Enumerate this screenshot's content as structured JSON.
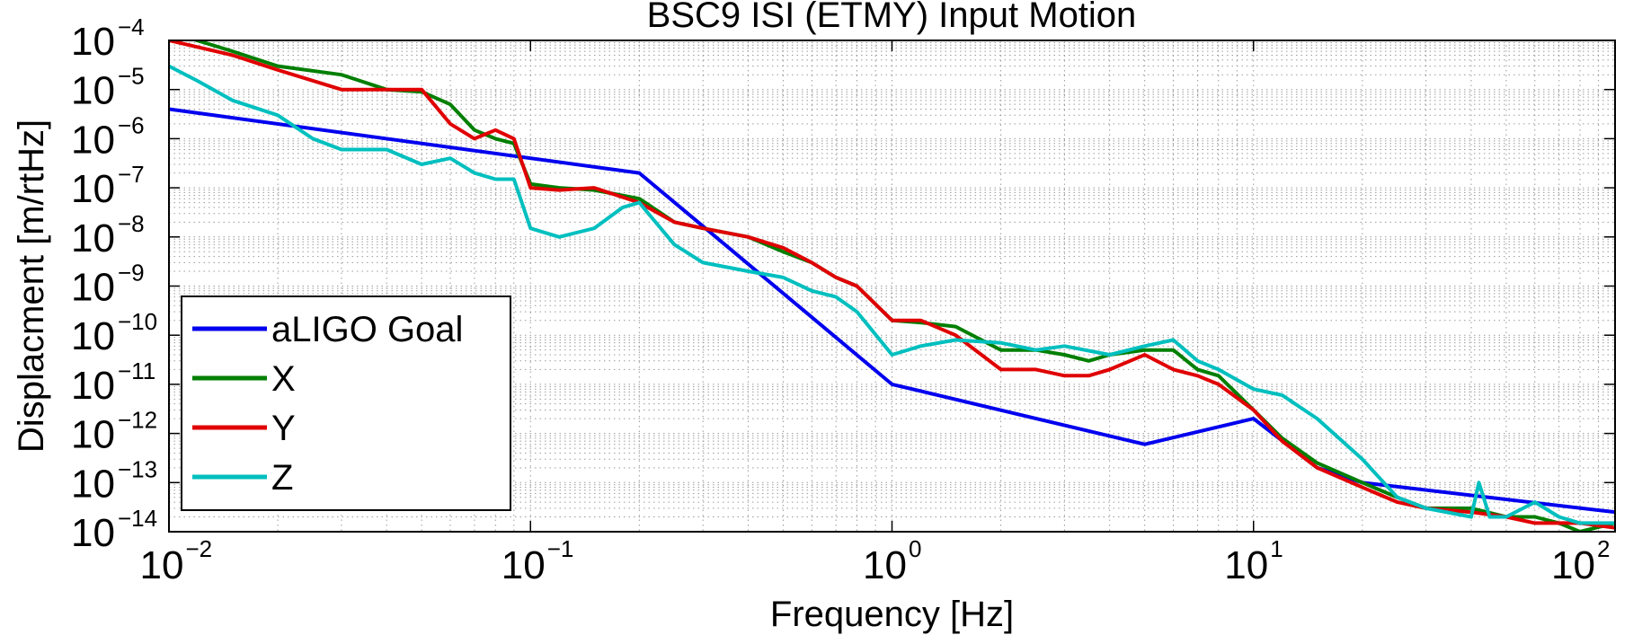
{
  "chart_data": {
    "type": "line",
    "title": "BSC9 ISI (ETMY) Input Motion",
    "xlabel": "Frequency [Hz]",
    "ylabel": "Displacment [m/rtHz]",
    "x_scale": "log",
    "y_scale": "log",
    "xlim": [
      0.01,
      100
    ],
    "ylim": [
      1e-14,
      0.0001
    ],
    "grid": true,
    "legend_position": "bottom-left",
    "x_ticks": [
      {
        "base": "10",
        "exp": "−2",
        "value": 0.01
      },
      {
        "base": "10",
        "exp": "−1",
        "value": 0.1
      },
      {
        "base": "10",
        "exp": "0",
        "value": 1
      },
      {
        "base": "10",
        "exp": "1",
        "value": 10
      },
      {
        "base": "10",
        "exp": "2",
        "value": 100
      }
    ],
    "y_ticks": [
      {
        "base": "10",
        "exp": "−4",
        "value": 0.0001
      },
      {
        "base": "10",
        "exp": "−5",
        "value": 1e-05
      },
      {
        "base": "10",
        "exp": "−6",
        "value": 1e-06
      },
      {
        "base": "10",
        "exp": "−7",
        "value": 1e-07
      },
      {
        "base": "10",
        "exp": "−8",
        "value": 1e-08
      },
      {
        "base": "10",
        "exp": "−9",
        "value": 1e-09
      },
      {
        "base": "10",
        "exp": "−10",
        "value": 1e-10
      },
      {
        "base": "10",
        "exp": "−11",
        "value": 1e-11
      },
      {
        "base": "10",
        "exp": "−12",
        "value": 1e-12
      },
      {
        "base": "10",
        "exp": "−13",
        "value": 1e-13
      },
      {
        "base": "10",
        "exp": "−14",
        "value": 1e-14
      }
    ],
    "series": [
      {
        "name": "aLIGO Goal",
        "color": "#0000ee",
        "x": [
          0.01,
          0.2,
          1,
          5,
          10,
          15,
          20,
          100
        ],
        "y": [
          4e-06,
          2e-07,
          1e-11,
          6e-13,
          2e-12,
          2e-13,
          1e-13,
          2.5e-14
        ]
      },
      {
        "name": "X",
        "color": "#007f00",
        "x": [
          0.01,
          0.015,
          0.02,
          0.03,
          0.04,
          0.05,
          0.06,
          0.07,
          0.08,
          0.09,
          0.1,
          0.12,
          0.15,
          0.2,
          0.25,
          0.3,
          0.4,
          0.5,
          0.6,
          0.7,
          0.8,
          1.0,
          1.2,
          1.5,
          2,
          2.5,
          3,
          3.5,
          4,
          5,
          6,
          7,
          8,
          10,
          12,
          15,
          20,
          25,
          30,
          40,
          50,
          60,
          70,
          80,
          100
        ],
        "y": [
          0.00015,
          6e-05,
          3e-05,
          2e-05,
          1e-05,
          9e-06,
          5e-06,
          1.5e-06,
          1e-06,
          8e-07,
          1.2e-07,
          1e-07,
          9e-08,
          6e-08,
          2e-08,
          1.5e-08,
          1e-08,
          5e-09,
          3e-09,
          1.5e-09,
          1e-09,
          2e-10,
          1.8e-10,
          1.5e-10,
          5e-11,
          5e-11,
          4e-11,
          3e-11,
          4e-11,
          5e-11,
          5e-11,
          2e-11,
          1.5e-11,
          3e-12,
          8e-13,
          2.5e-13,
          1e-13,
          5e-14,
          3e-14,
          3e-14,
          2e-14,
          2e-14,
          1.5e-14,
          1e-14,
          1.5e-14
        ]
      },
      {
        "name": "Y",
        "color": "#e00000",
        "x": [
          0.01,
          0.015,
          0.02,
          0.03,
          0.04,
          0.05,
          0.06,
          0.07,
          0.08,
          0.09,
          0.1,
          0.12,
          0.15,
          0.2,
          0.25,
          0.3,
          0.4,
          0.5,
          0.6,
          0.7,
          0.8,
          1.0,
          1.2,
          1.5,
          2,
          2.5,
          3,
          3.5,
          4,
          5,
          6,
          7,
          8,
          10,
          12,
          15,
          20,
          25,
          30,
          40,
          50,
          60,
          70,
          80,
          100
        ],
        "y": [
          0.0001,
          5e-05,
          2.5e-05,
          1e-05,
          1e-05,
          1e-05,
          2e-06,
          1e-06,
          1.5e-06,
          1e-06,
          1e-07,
          9e-08,
          1e-07,
          5e-08,
          2e-08,
          1.5e-08,
          1e-08,
          6e-09,
          3e-09,
          1.5e-09,
          1e-09,
          2e-10,
          2e-10,
          1e-10,
          2e-11,
          2e-11,
          1.5e-11,
          1.5e-11,
          2e-11,
          4e-11,
          2e-11,
          1.5e-11,
          1e-11,
          3e-12,
          7e-13,
          2e-13,
          8e-14,
          4e-14,
          3e-14,
          2.5e-14,
          2e-14,
          1.5e-14,
          1.5e-14,
          1.5e-14,
          1.2e-14
        ]
      },
      {
        "name": "Z",
        "color": "#00bfbf",
        "x": [
          0.01,
          0.012,
          0.015,
          0.02,
          0.025,
          0.03,
          0.04,
          0.05,
          0.06,
          0.07,
          0.08,
          0.09,
          0.1,
          0.12,
          0.15,
          0.18,
          0.2,
          0.25,
          0.3,
          0.4,
          0.5,
          0.6,
          0.7,
          0.8,
          1.0,
          1.2,
          1.5,
          2,
          2.5,
          3,
          4,
          5,
          6,
          7,
          8,
          10,
          12,
          15,
          20,
          25,
          30,
          40,
          42,
          45,
          50,
          60,
          70,
          80,
          100
        ],
        "y": [
          3e-05,
          1.5e-05,
          6e-06,
          3e-06,
          1e-06,
          6e-07,
          6e-07,
          3e-07,
          4e-07,
          2e-07,
          1.5e-07,
          1.5e-07,
          1.5e-08,
          1e-08,
          1.5e-08,
          4e-08,
          5e-08,
          7e-09,
          3e-09,
          2e-09,
          1.5e-09,
          8e-10,
          6e-10,
          3e-10,
          4e-11,
          6e-11,
          8e-11,
          7e-11,
          5e-11,
          6e-11,
          4e-11,
          6e-11,
          8e-11,
          3e-11,
          2e-11,
          8e-12,
          6e-12,
          2e-12,
          3e-13,
          5e-14,
          3e-14,
          2e-14,
          1e-13,
          2e-14,
          2e-14,
          4e-14,
          2e-14,
          1.5e-14,
          1.5e-14
        ]
      }
    ]
  }
}
